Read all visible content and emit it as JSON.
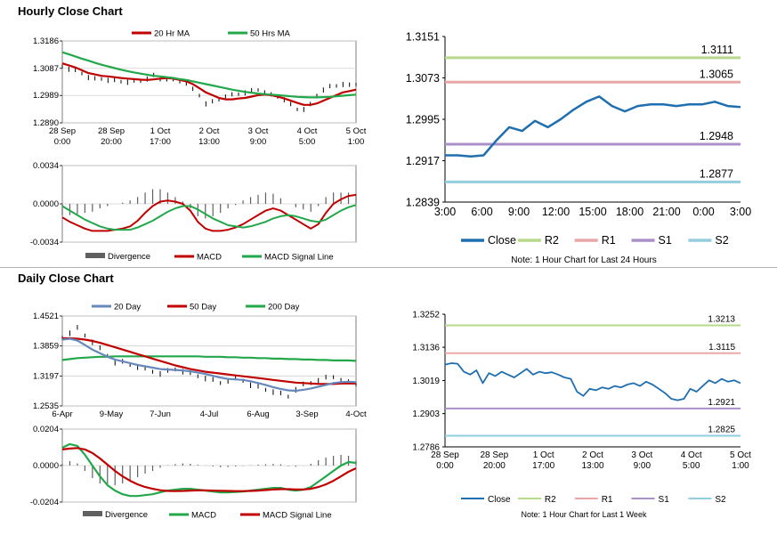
{
  "colors": {
    "ma20": "#c00000",
    "ma50": "#22a84a",
    "ma200": "#22a84a",
    "ma20_daily": "#6688bb",
    "close": "#1f6fb0",
    "r2": "#b8d98a",
    "r1": "#eaa7a7",
    "s1": "#a990c8",
    "s2": "#92cde0",
    "divergence": "#606060",
    "axis": "#000000",
    "grid": "#d0d0d0"
  },
  "sections": {
    "hourly_title": "Hourly Close Chart",
    "daily_title": "Daily Close Chart"
  },
  "chart_data": [
    {
      "id": "hourly_price",
      "type": "line",
      "title": "Hourly Close Chart",
      "legend": [
        "20 Hr MA",
        "50 Hrs MA"
      ],
      "yticks": [
        "1.3186",
        "1.3087",
        "1.2989",
        "1.2890"
      ],
      "ylim": [
        1.289,
        1.3186
      ],
      "xticks": [
        [
          "28 Sep",
          "0:00"
        ],
        [
          "28 Sep",
          "20:00"
        ],
        [
          "1 Oct",
          "17:00"
        ],
        [
          "2 Oct",
          "13:00"
        ],
        [
          "3 Oct",
          "9:00"
        ],
        [
          "4 Oct",
          "5:00"
        ],
        [
          "5 Oct",
          "1:00"
        ]
      ],
      "series": [
        {
          "name": "Close",
          "kind": "ohlc",
          "values": [
            1.3095,
            1.3085,
            1.3078,
            1.307,
            1.3055,
            1.3048,
            1.305,
            1.3045,
            1.3042,
            1.304,
            1.3038,
            1.304,
            1.3042,
            1.305,
            1.306,
            1.3048,
            1.305,
            1.3045,
            1.304,
            1.3035,
            1.301,
            1.299,
            1.296,
            1.2965,
            1.2975,
            1.2985,
            1.299,
            1.2995,
            1.3,
            1.3005,
            1.301,
            1.3,
            1.299,
            1.2985,
            1.2975,
            1.2955,
            1.294,
            1.294,
            1.2955,
            1.299,
            1.301,
            1.302,
            1.3025,
            1.303,
            1.3025,
            1.303
          ]
        },
        {
          "name": "20 Hr MA",
          "values": [
            1.3105,
            1.3098,
            1.309,
            1.308,
            1.307,
            1.3065,
            1.306,
            1.3058,
            1.3055,
            1.3052,
            1.305,
            1.3048,
            1.3046,
            1.3045,
            1.3047,
            1.305,
            1.3052,
            1.305,
            1.3045,
            1.304,
            1.303,
            1.3015,
            1.3,
            1.299,
            1.298,
            1.2975,
            1.2975,
            1.2978,
            1.298,
            1.2985,
            1.299,
            1.2992,
            1.299,
            1.2985,
            1.2978,
            1.297,
            1.2962,
            1.2955,
            1.2955,
            1.296,
            1.297,
            1.298,
            1.299,
            1.3,
            1.3005,
            1.301
          ]
        },
        {
          "name": "50 Hrs MA",
          "values": [
            1.3145,
            1.3138,
            1.313,
            1.3122,
            1.3115,
            1.3107,
            1.31,
            1.3094,
            1.3088,
            1.3082,
            1.3077,
            1.3072,
            1.3068,
            1.3064,
            1.306,
            1.3058,
            1.3055,
            1.3052,
            1.3048,
            1.3045,
            1.304,
            1.3035,
            1.303,
            1.3025,
            1.302,
            1.3015,
            1.301,
            1.3006,
            1.3002,
            1.2999,
            1.2996,
            1.2994,
            1.2992,
            1.299,
            1.2988,
            1.2986,
            1.2984,
            1.2983,
            1.2982,
            1.2982,
            1.2983,
            1.2984,
            1.2986,
            1.2988,
            1.299,
            1.2992
          ]
        }
      ]
    },
    {
      "id": "hourly_macd",
      "type": "line",
      "legend": [
        "Divergence",
        "MACD",
        "MACD Signal Line"
      ],
      "yticks": [
        "0.0034",
        "0.0000",
        "-0.0034"
      ],
      "ylim": [
        -0.0034,
        0.0034
      ],
      "series": [
        {
          "name": "MACD",
          "values": [
            -0.0012,
            -0.0016,
            -0.0019,
            -0.0022,
            -0.0024,
            -0.0024,
            -0.0024,
            -0.0023,
            -0.0022,
            -0.002,
            -0.0015,
            -0.0008,
            -0.0002,
            0.0002,
            0.0003,
            0.0002,
            0.0,
            -0.0006,
            -0.0016,
            -0.0022,
            -0.0024,
            -0.0024,
            -0.0023,
            -0.0021,
            -0.0018,
            -0.0014,
            -0.001,
            -0.0006,
            -0.0004,
            -0.0006,
            -0.001,
            -0.0014,
            -0.0018,
            -0.0022,
            -0.0018,
            -0.0008,
            0.0,
            0.0004,
            0.0007,
            0.0008
          ]
        },
        {
          "name": "MACD Signal Line",
          "values": [
            -0.0002,
            -0.0006,
            -0.001,
            -0.0014,
            -0.0017,
            -0.002,
            -0.0022,
            -0.0023,
            -0.0023,
            -0.0023,
            -0.0021,
            -0.0018,
            -0.0015,
            -0.0011,
            -0.0007,
            -0.0004,
            -0.0002,
            -0.0002,
            -0.0005,
            -0.0009,
            -0.0013,
            -0.0016,
            -0.0019,
            -0.002,
            -0.0021,
            -0.002,
            -0.0018,
            -0.0016,
            -0.0013,
            -0.0011,
            -0.001,
            -0.0011,
            -0.0013,
            -0.0015,
            -0.0016,
            -0.0014,
            -0.001,
            -0.0006,
            -0.0003,
            -0.0001
          ]
        }
      ]
    },
    {
      "id": "hourly_levels",
      "type": "line",
      "note": "Note: 1 Hour Chart for Last 24 Hours",
      "yticks": [
        "1.3151",
        "1.3073",
        "1.2995",
        "1.2917",
        "1.2839"
      ],
      "ylim": [
        1.2839,
        1.3151
      ],
      "xticks": [
        "3:00",
        "6:00",
        "9:00",
        "12:00",
        "15:00",
        "18:00",
        "21:00",
        "0:00",
        "3:00"
      ],
      "legend": [
        "Close",
        "R2",
        "R1",
        "S1",
        "S2"
      ],
      "levels": {
        "R2": 1.3111,
        "R1": 1.3065,
        "S1": 1.2948,
        "S2": 1.2877
      },
      "level_labels": {
        "R2": "1.3111",
        "R1": "1.3065",
        "S1": "1.2948",
        "S2": "1.2877"
      },
      "series": [
        {
          "name": "Close",
          "values": [
            1.2927,
            1.2927,
            1.2925,
            1.2927,
            1.2955,
            1.298,
            1.2973,
            1.2992,
            1.298,
            1.2995,
            1.3013,
            1.3028,
            1.3038,
            1.302,
            1.301,
            1.302,
            1.3023,
            1.3023,
            1.302,
            1.3023,
            1.3023,
            1.3028,
            1.302,
            1.3018
          ]
        }
      ]
    },
    {
      "id": "daily_price",
      "type": "line",
      "title": "Daily Close Chart",
      "legend": [
        "20 Day",
        "50 Day",
        "200 Day"
      ],
      "yticks": [
        "1.4521",
        "1.3859",
        "1.3197",
        "1.2535"
      ],
      "ylim": [
        1.2535,
        1.4521
      ],
      "xticks": [
        "6-Apr",
        "9-May",
        "7-Jun",
        "4-Jul",
        "6-Aug",
        "3-Sep",
        "4-Oct"
      ],
      "series": [
        {
          "name": "Close",
          "kind": "ohlc",
          "values": [
            1.405,
            1.415,
            1.425,
            1.41,
            1.395,
            1.38,
            1.365,
            1.35,
            1.35,
            1.345,
            1.34,
            1.335,
            1.33,
            1.325,
            1.33,
            1.335,
            1.33,
            1.325,
            1.32,
            1.315,
            1.31,
            1.305,
            1.31,
            1.315,
            1.31,
            1.3,
            1.295,
            1.29,
            1.285,
            1.28,
            1.275,
            1.29,
            1.3,
            1.305,
            1.31,
            1.315,
            1.318,
            1.31,
            1.305,
            1.302
          ]
        },
        {
          "name": "20 Day",
          "values": [
            1.4,
            1.402,
            1.398,
            1.388,
            1.378,
            1.37,
            1.362,
            1.356,
            1.352,
            1.348,
            1.344,
            1.341,
            1.338,
            1.335,
            1.334,
            1.333,
            1.332,
            1.33,
            1.327,
            1.324,
            1.32,
            1.316,
            1.313,
            1.312,
            1.311,
            1.308,
            1.304,
            1.3,
            1.295,
            1.291,
            1.288,
            1.287,
            1.289,
            1.292,
            1.296,
            1.3,
            1.304,
            1.306,
            1.307,
            1.306
          ]
        },
        {
          "name": "50 Day",
          "values": [
            1.403,
            1.403,
            1.402,
            1.4,
            1.397,
            1.393,
            1.388,
            1.383,
            1.378,
            1.373,
            1.368,
            1.363,
            1.358,
            1.353,
            1.348,
            1.343,
            1.339,
            1.335,
            1.332,
            1.329,
            1.327,
            1.325,
            1.323,
            1.321,
            1.319,
            1.317,
            1.315,
            1.313,
            1.311,
            1.309,
            1.307,
            1.305,
            1.304,
            1.303,
            1.302,
            1.302,
            1.302,
            1.303,
            1.303,
            1.303
          ]
        },
        {
          "name": "200 Day",
          "values": [
            1.355,
            1.357,
            1.359,
            1.36,
            1.361,
            1.362,
            1.362,
            1.363,
            1.363,
            1.363,
            1.363,
            1.363,
            1.363,
            1.363,
            1.363,
            1.363,
            1.363,
            1.363,
            1.363,
            1.362,
            1.362,
            1.362,
            1.361,
            1.361,
            1.36,
            1.36,
            1.359,
            1.359,
            1.358,
            1.358,
            1.357,
            1.357,
            1.356,
            1.356,
            1.355,
            1.355,
            1.354,
            1.354,
            1.354,
            1.353
          ]
        }
      ]
    },
    {
      "id": "daily_macd",
      "type": "line",
      "legend": [
        "Divergence",
        "MACD",
        "MACD Signal Line"
      ],
      "yticks": [
        "0.0204",
        "0.0000",
        "-0.0204"
      ],
      "ylim": [
        -0.0204,
        0.0204
      ],
      "series": [
        {
          "name": "MACD",
          "values": [
            0.01,
            0.012,
            0.011,
            0.006,
            0.0,
            -0.006,
            -0.011,
            -0.014,
            -0.016,
            -0.017,
            -0.017,
            -0.0165,
            -0.016,
            -0.015,
            -0.014,
            -0.0135,
            -0.013,
            -0.013,
            -0.0135,
            -0.014,
            -0.0145,
            -0.015,
            -0.015,
            -0.0148,
            -0.0145,
            -0.014,
            -0.0135,
            -0.013,
            -0.0125,
            -0.0125,
            -0.0135,
            -0.014,
            -0.0135,
            -0.012,
            -0.009,
            -0.006,
            -0.003,
            0.0,
            0.002,
            0.0015
          ]
        },
        {
          "name": "MACD Signal Line",
          "values": [
            0.009,
            0.0095,
            0.0098,
            0.009,
            0.007,
            0.004,
            0.0005,
            -0.003,
            -0.006,
            -0.0085,
            -0.0105,
            -0.012,
            -0.013,
            -0.0138,
            -0.0142,
            -0.0143,
            -0.0142,
            -0.014,
            -0.0139,
            -0.0139,
            -0.014,
            -0.0141,
            -0.0142,
            -0.0143,
            -0.0143,
            -0.0142,
            -0.014,
            -0.0137,
            -0.0134,
            -0.0132,
            -0.0132,
            -0.0134,
            -0.0134,
            -0.013,
            -0.012,
            -0.0105,
            -0.0085,
            -0.006,
            -0.0035,
            -0.0015
          ]
        }
      ]
    },
    {
      "id": "daily_levels",
      "type": "line",
      "note": "Note: 1 Hour Chart for Last 1 Week",
      "yticks": [
        "1.3252",
        "1.3136",
        "1.3019",
        "1.2903",
        "1.2786"
      ],
      "ylim": [
        1.2786,
        1.3252
      ],
      "xticks": [
        [
          "28 Sep",
          "0:00"
        ],
        [
          "28 Sep",
          "20:00"
        ],
        [
          "1 Oct",
          "17:00"
        ],
        [
          "2 Oct",
          "13:00"
        ],
        [
          "3 Oct",
          "9:00"
        ],
        [
          "4 Oct",
          "5:00"
        ],
        [
          "5 Oct",
          "1:00"
        ]
      ],
      "legend": [
        "Close",
        "R2",
        "R1",
        "S1",
        "S2"
      ],
      "levels": {
        "R2": 1.3213,
        "R1": 1.3115,
        "S1": 1.2921,
        "S2": 1.2825
      },
      "level_labels": {
        "R2": "1.3213",
        "R1": "1.3115",
        "S1": "1.2921",
        "S2": "1.2825"
      },
      "series": [
        {
          "name": "Close",
          "values": [
            1.3075,
            1.308,
            1.3078,
            1.305,
            1.304,
            1.3055,
            1.301,
            1.3045,
            1.3035,
            1.305,
            1.304,
            1.303,
            1.3045,
            1.306,
            1.304,
            1.305,
            1.3045,
            1.3048,
            1.304,
            1.303,
            1.3025,
            1.298,
            1.2965,
            1.299,
            1.2985,
            1.2995,
            1.299,
            1.3,
            1.2995,
            1.3005,
            1.301,
            1.3,
            1.3015,
            1.3005,
            1.299,
            1.2975,
            1.2955,
            1.295,
            1.2955,
            1.299,
            1.298,
            1.3,
            1.302,
            1.301,
            1.3025,
            1.3015,
            1.302,
            1.301
          ]
        }
      ]
    }
  ]
}
